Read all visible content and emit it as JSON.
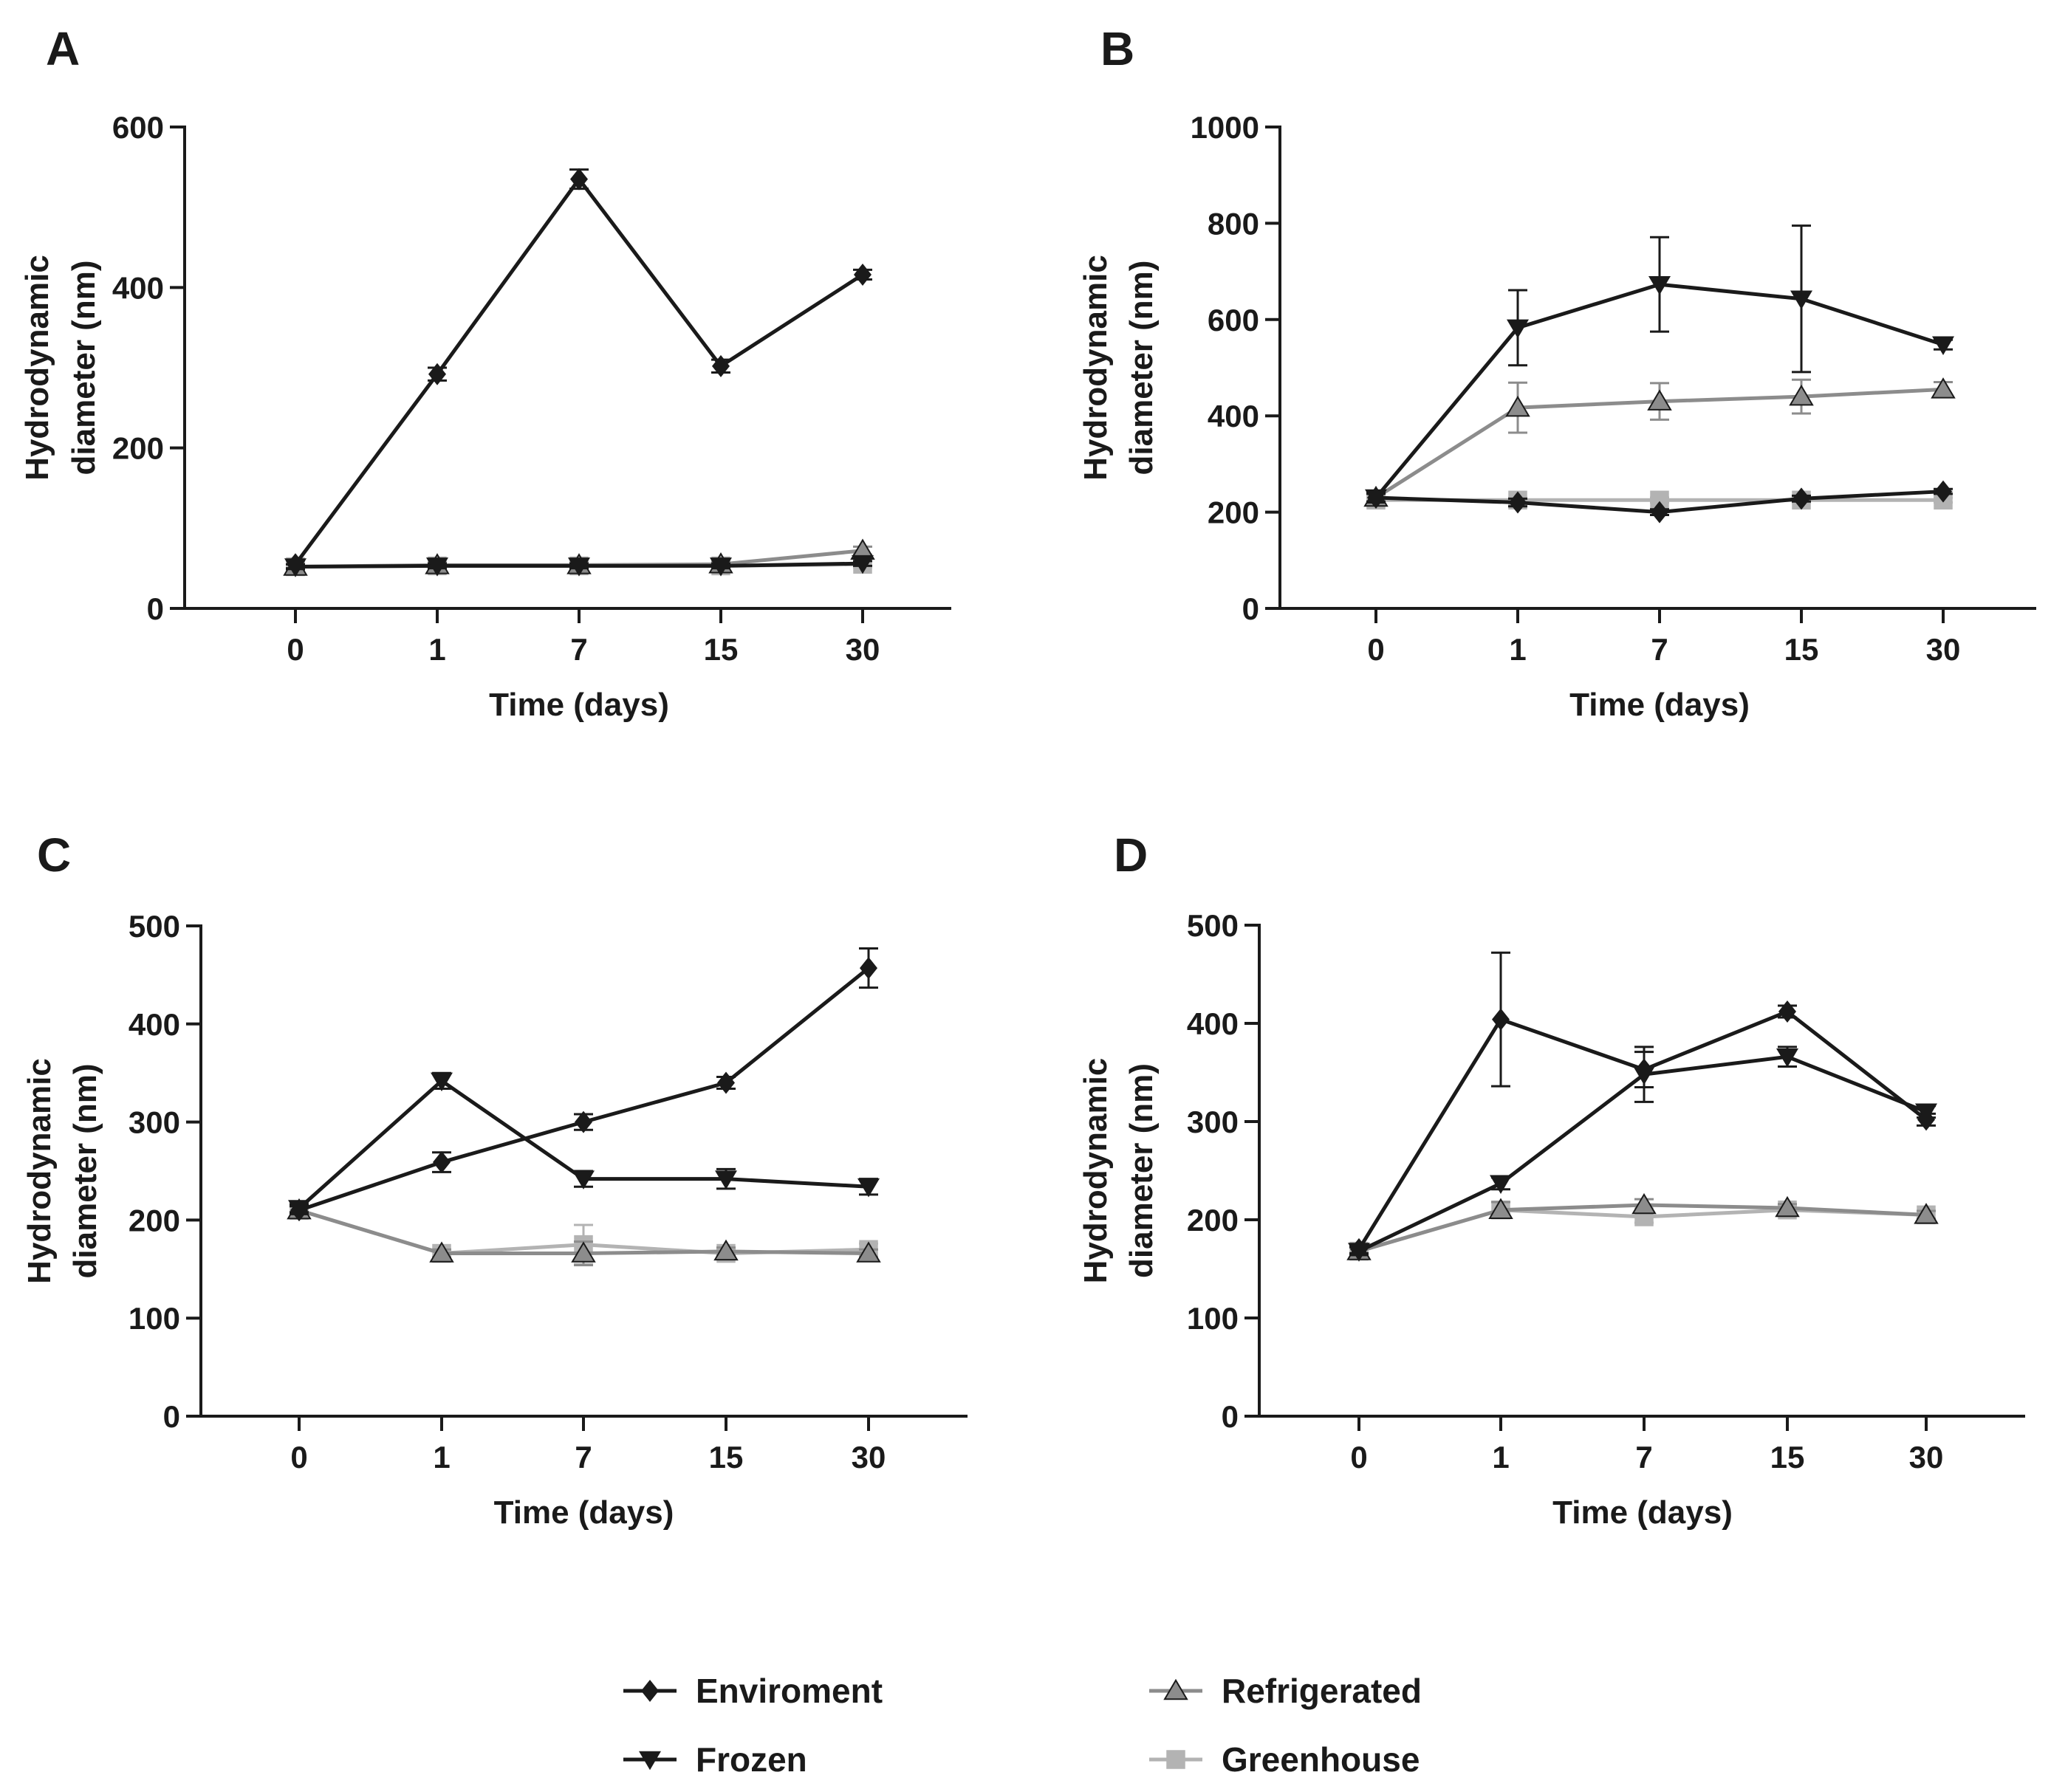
{
  "figure": {
    "legend": {
      "position": "bottom",
      "entries": [
        {
          "key": "enviroment",
          "label": "Enviroment"
        },
        {
          "key": "frozen",
          "label": "Frozen"
        },
        {
          "key": "refrigerated",
          "label": "Refrigerated"
        },
        {
          "key": "greenhouse",
          "label": "Greenhouse"
        }
      ]
    },
    "styles": {
      "enviroment": {
        "color": "#1a1a1a",
        "marker": "diamond"
      },
      "frozen": {
        "color": "#1a1a1a",
        "marker": "triangle-down"
      },
      "refrigerated": {
        "color": "#8c8c8c",
        "marker": "triangle-up"
      },
      "greenhouse": {
        "color": "#b3b3b3",
        "marker": "square"
      }
    }
  },
  "chart_data": [
    {
      "panel": "A",
      "type": "line",
      "xlabel": "Time (days)",
      "ylabel_lines": [
        "Hydrodynamic",
        "diameter (nm)"
      ],
      "categories": [
        "0",
        "1",
        "7",
        "15",
        "30"
      ],
      "ylim": [
        0,
        600
      ],
      "yticks": [
        0,
        200,
        400,
        600
      ],
      "grid": false,
      "series": [
        {
          "name": "Greenhouse",
          "key": "greenhouse",
          "values": [
            52,
            53,
            53,
            53,
            55
          ],
          "errors": [
            4,
            4,
            4,
            4,
            4
          ]
        },
        {
          "name": "Refrigerated",
          "key": "refrigerated",
          "values": [
            52,
            54,
            54,
            55,
            72
          ],
          "errors": [
            3,
            3,
            3,
            3,
            5
          ]
        },
        {
          "name": "Frozen",
          "key": "frozen",
          "values": [
            52,
            53,
            53,
            53,
            56
          ],
          "errors": [
            3,
            3,
            3,
            3,
            3
          ]
        },
        {
          "name": "Enviroment",
          "key": "enviroment",
          "values": [
            55,
            292,
            535,
            302,
            416
          ],
          "errors": [
            5,
            8,
            12,
            8,
            6
          ]
        }
      ]
    },
    {
      "panel": "B",
      "type": "line",
      "xlabel": "Time (days)",
      "ylabel_lines": [
        "Hydrodynamic",
        "diameter (nm)"
      ],
      "categories": [
        "0",
        "1",
        "7",
        "15",
        "30"
      ],
      "ylim": [
        0,
        1000
      ],
      "yticks": [
        0,
        200,
        400,
        600,
        800,
        1000
      ],
      "grid": false,
      "series": [
        {
          "name": "Greenhouse",
          "key": "greenhouse",
          "values": [
            225,
            225,
            225,
            225,
            225
          ],
          "errors": [
            5,
            5,
            5,
            5,
            5
          ]
        },
        {
          "name": "Refrigerated",
          "key": "refrigerated",
          "values": [
            230,
            417,
            430,
            440,
            455
          ],
          "errors": [
            10,
            52,
            38,
            35,
            15
          ]
        },
        {
          "name": "Frozen",
          "key": "frozen",
          "values": [
            230,
            583,
            673,
            643,
            548
          ],
          "errors": [
            10,
            78,
            98,
            152,
            10
          ]
        },
        {
          "name": "Enviroment",
          "key": "enviroment",
          "values": [
            230,
            220,
            200,
            228,
            243
          ],
          "errors": [
            8,
            8,
            6,
            6,
            5
          ]
        }
      ]
    },
    {
      "panel": "C",
      "type": "line",
      "xlabel": "Time (days)",
      "ylabel_lines": [
        "Hydrodynamic",
        "diameter (nm)"
      ],
      "categories": [
        "0",
        "1",
        "7",
        "15",
        "30"
      ],
      "ylim": [
        0,
        500
      ],
      "yticks": [
        0,
        100,
        200,
        300,
        400,
        500
      ],
      "grid": false,
      "series": [
        {
          "name": "Greenhouse",
          "key": "greenhouse",
          "values": [
            210,
            166,
            175,
            166,
            170
          ],
          "errors": [
            4,
            4,
            20,
            4,
            6
          ]
        },
        {
          "name": "Refrigerated",
          "key": "refrigerated",
          "values": [
            210,
            166,
            166,
            168,
            166
          ],
          "errors": [
            4,
            4,
            12,
            4,
            4
          ]
        },
        {
          "name": "Frozen",
          "key": "frozen",
          "values": [
            212,
            342,
            242,
            242,
            234
          ],
          "errors": [
            4,
            8,
            8,
            10,
            8
          ]
        },
        {
          "name": "Enviroment",
          "key": "enviroment",
          "values": [
            210,
            259,
            300,
            340,
            457
          ],
          "errors": [
            4,
            10,
            8,
            6,
            20
          ]
        }
      ]
    },
    {
      "panel": "D",
      "type": "line",
      "xlabel": "Time (days)",
      "ylabel_lines": [
        "Hydrodynamic",
        "diameter (nm)"
      ],
      "categories": [
        "0",
        "1",
        "7",
        "15",
        "30"
      ],
      "ylim": [
        0,
        500
      ],
      "yticks": [
        0,
        100,
        200,
        300,
        400,
        500
      ],
      "grid": false,
      "series": [
        {
          "name": "Greenhouse",
          "key": "greenhouse",
          "values": [
            168,
            210,
            203,
            210,
            205
          ],
          "errors": [
            4,
            8,
            6,
            4,
            4
          ]
        },
        {
          "name": "Refrigerated",
          "key": "refrigerated",
          "values": [
            168,
            210,
            215,
            212,
            205
          ],
          "errors": [
            4,
            8,
            6,
            4,
            4
          ]
        },
        {
          "name": "Frozen",
          "key": "frozen",
          "values": [
            168,
            237,
            348,
            366,
            310
          ],
          "errors": [
            4,
            6,
            28,
            10,
            6
          ]
        },
        {
          "name": "Enviroment",
          "key": "enviroment",
          "values": [
            170,
            404,
            353,
            412,
            302
          ],
          "errors": [
            4,
            68,
            18,
            6,
            6
          ]
        }
      ]
    }
  ]
}
